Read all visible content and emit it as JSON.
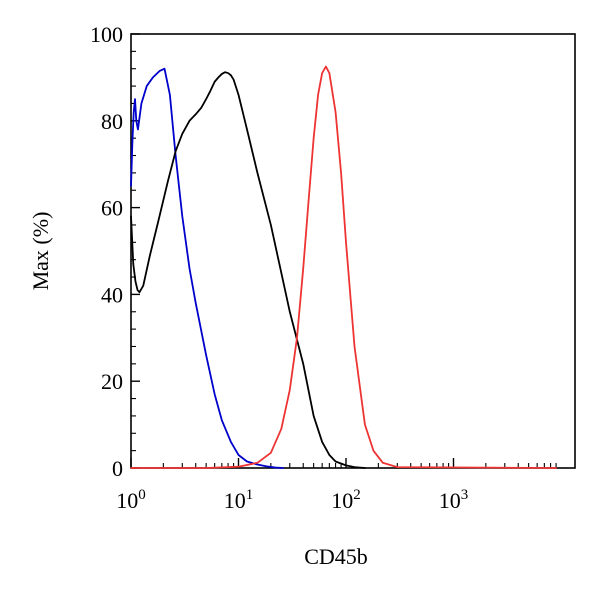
{
  "chart_data": {
    "type": "line",
    "title": "",
    "xlabel": "CD45b",
    "ylabel": "Max (%)",
    "x_scale": "log",
    "xlim": [
      1,
      9000
    ],
    "ylim": [
      0,
      100
    ],
    "grid": false,
    "legend": "none",
    "x_ticks": [
      {
        "value": 1,
        "base": "10",
        "exp": "0"
      },
      {
        "value": 10,
        "base": "10",
        "exp": "1"
      },
      {
        "value": 100,
        "base": "10",
        "exp": "2"
      },
      {
        "value": 1000,
        "base": "10",
        "exp": "3"
      }
    ],
    "y_ticks": [
      0,
      20,
      40,
      60,
      80,
      100
    ],
    "series": [
      {
        "color": "#0000cc",
        "x": [
          1.0,
          1.03,
          1.06,
          1.09,
          1.12,
          1.16,
          1.25,
          1.4,
          1.6,
          1.85,
          2.05,
          2.3,
          2.6,
          3.0,
          3.5,
          4.0,
          5.0,
          6.0,
          7.0,
          8.5,
          10.0,
          12.0,
          15.0,
          18.0,
          22.0,
          26.0
        ],
        "y": [
          65,
          75,
          82,
          85,
          80,
          78,
          84,
          88,
          90,
          91.5,
          92,
          86,
          72,
          58,
          46,
          38,
          26,
          17,
          11,
          6,
          3,
          1.5,
          0.8,
          0.4,
          0.1,
          0
        ]
      },
      {
        "color": "#000000",
        "x": [
          1.0,
          1.05,
          1.1,
          1.15,
          1.2,
          1.3,
          1.5,
          1.8,
          2.2,
          2.6,
          3.0,
          3.5,
          4.0,
          4.5,
          5.0,
          5.5,
          6.0,
          6.5,
          7.0,
          7.5,
          8.0,
          8.5,
          9.0,
          10.0,
          12.0,
          15.0,
          20.0,
          25.0,
          30.0,
          40.0,
          50.0,
          60.0,
          70.0,
          80.0,
          100.0,
          120.0,
          150.0
        ],
        "y": [
          58,
          47,
          43,
          41,
          40.5,
          42,
          49,
          57,
          66,
          73,
          77,
          80,
          81.5,
          83,
          85,
          87,
          89,
          90,
          90.8,
          91.2,
          91,
          90.5,
          89.5,
          86,
          78,
          68,
          56,
          45,
          36,
          24,
          12,
          6,
          3,
          1.5,
          0.6,
          0.2,
          0
        ]
      },
      {
        "color": "#ee3333",
        "x": [
          1.0,
          5.0,
          10.0,
          15.0,
          20.0,
          25.0,
          30.0,
          35.0,
          40.0,
          45.0,
          50.0,
          55.0,
          60.0,
          65.0,
          70.0,
          80.0,
          90.0,
          100.0,
          120.0,
          150.0,
          180.0,
          220.0,
          300.0,
          9000.0
        ],
        "y": [
          0,
          0,
          0.3,
          1.2,
          3.5,
          9,
          18,
          30,
          46,
          62,
          76,
          86,
          91,
          92.5,
          91,
          82,
          68,
          52,
          28,
          10,
          4,
          1.2,
          0.2,
          0
        ]
      }
    ]
  }
}
